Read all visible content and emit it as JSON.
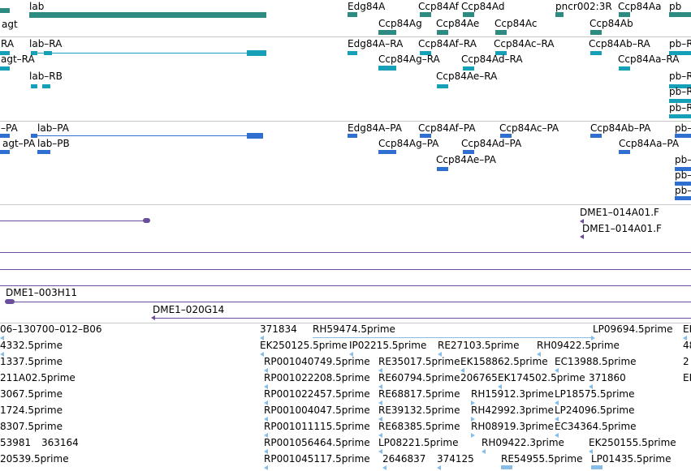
{
  "colors": {
    "gene": "#2e8b82",
    "transcript": "#15a0b8",
    "protein": "#2f6fcf",
    "clone": "#6a4e9a",
    "est": "#87bde6"
  },
  "genes": [
    "agt",
    "lab",
    "Edg84A",
    "Ccp84Af",
    "Ccp84Ad",
    "pncr002:3R",
    "Ccp84Aa",
    "pb",
    "Ccp84Ag",
    "Ccp84Ae",
    "Ccp84Ac",
    "Ccp84Ab"
  ],
  "transcripts": [
    "RA",
    "lab–RA",
    "Edg84A–RA",
    "Ccp84Af–RA",
    "Ccp84Ac–RA",
    "Ccp84Ab–RA",
    "pb–R",
    "agt–RA",
    "Ccp84Ag–RA",
    "Ccp84Ad–RA",
    "Ccp84Aa–RA",
    "lab–RB",
    "Ccp84Ae–RA",
    "pb–R",
    "pb–R",
    "pb–R"
  ],
  "proteins": [
    "–PA",
    "lab–PA",
    "Edg84A–PA",
    "Ccp84Af–PA",
    "Ccp84Ac–PA",
    "Ccp84Ab–PA",
    "pb–",
    "agt–PA",
    "lab–PB",
    "Ccp84Ag–PA",
    "Ccp84Ad–PA",
    "Ccp84Aa–PA",
    "Ccp84Ae–PA",
    "pb–",
    "pb–",
    "pb–"
  ],
  "clones": [
    "DME1–014A01.F",
    "DME1–014A01.F",
    "DME1–003H11",
    "DME1–020G14"
  ],
  "ests": [
    "06–130700–012–B06",
    "371834",
    "RH59474.5prime",
    "LP09694.5prime",
    "EF",
    "4332.5prime",
    "EK250125.5prime",
    "IP02215.5prime",
    "RE27103.5prime",
    "RH09422.5prime",
    "48",
    "1337.5prime",
    "RP001040749.5prime",
    "RE35017.5prime",
    "EK158862.5prime",
    "EC13988.5prime",
    "2",
    "211A02.5prime",
    "RP001022208.5prime",
    "RE60794.5prime",
    "206765",
    "EK174502.5prime",
    "371860",
    "EK",
    "3067.5prime",
    "RP001022457.5prime",
    "RE68817.5prime",
    "RH15912.3prime",
    "LP18575.5prime",
    "1724.5prime",
    "RP001004047.5prime",
    "RE39132.5prime",
    "RH42992.3prime",
    "LP24096.5prime",
    "8307.5prime",
    "RP001011115.5prime",
    "RE68385.5prime",
    "RH08919.3prime",
    "EC34364.5prime",
    "53981",
    "363164",
    "RP001056464.5prime",
    "LP08221.5prime",
    "RH09422.3prime",
    "EK250155.5prime",
    "20539.5prime",
    "RP001045117.5prime",
    "2646837",
    "374125",
    "RE54955.5prime",
    "LP01435.5prime"
  ]
}
